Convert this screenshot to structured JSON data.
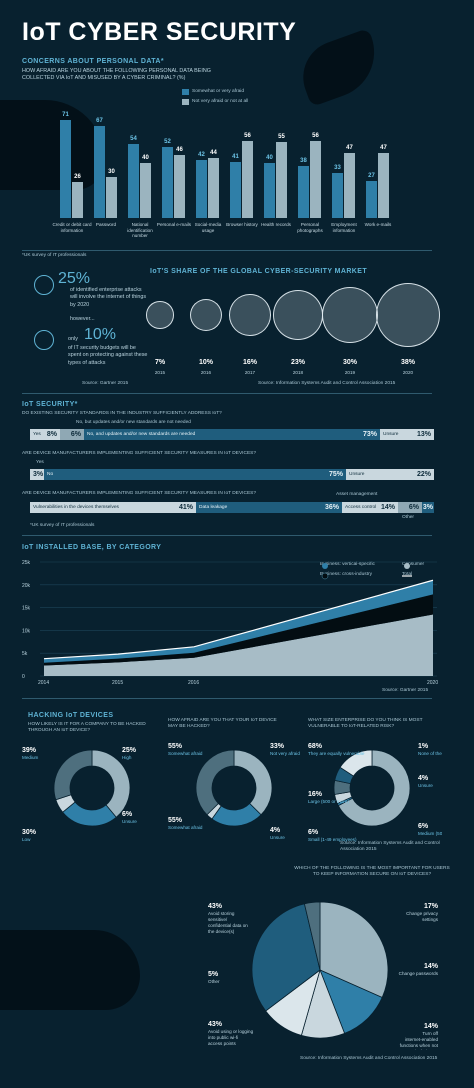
{
  "title": "IoT CYBER SECURITY",
  "concerns": {
    "heading": "CONCERNS ABOUT PERSONAL DATA*",
    "question": "HOW AFRAID ARE YOU ABOUT THE FOLLOWING PERSONAL DATA BEING COLLECTED VIA IoT AND MISUSED BY A CYBER CRIMINAL? (%)",
    "legend_a": "Somewhat or very afraid",
    "legend_b": "Not very afraid or not at all",
    "footnote": "*UK survey of IT professionals"
  },
  "threat": {
    "pct1": "25%",
    "text1": "of identified enterprise attacks will involve the internet of things by 2020",
    "however": "however...",
    "only": "only",
    "pct2": "10%",
    "text2": "of IT security budgets will be spent on protecting against these types of attacks",
    "source": "Source: Gartner 2015"
  },
  "share": {
    "heading": "IoT'S SHARE OF THE GLOBAL CYBER-SECURITY MARKET",
    "source": "Source: Information Systems Audit and Control Association 2015"
  },
  "security": {
    "heading": "IoT SECURITY*",
    "q1": "DO EXISTING SECURITY STANDARDS IN THE INDUSTRY SUFFICIENTLY ADDRESS IoT?",
    "q1_note": "No, but updates and/or new standards are not needed",
    "q1_yes": "Yes",
    "q1_yes_v": "8%",
    "q1_note_v": "6%",
    "q1_no": "No, and updates and/or new standards are needed",
    "q1_no_v": "73%",
    "q1_unsure": "Unsure",
    "q1_unsure_v": "13%",
    "q2": "ARE DEVICE MANUFACTURERS IMPLEMENTING SUFFICIENT SECURITY MEASURES IN IoT DEVICES?",
    "q2_yes_label": "Yes",
    "q2_yes_v": "3%",
    "q2_no": "No",
    "q2_no_v": "75%",
    "q2_unsure": "Unsure",
    "q2_unsure_v": "22%",
    "q3": "ARE DEVICE MANUFACTURERS IMPLEMENTING SUFFICIENT SECURITY MEASURES IN IoT DEVICES?",
    "q3_asset": "Asset management",
    "q3_vuln": "Vulnerabilities in the devices themselves",
    "q3_vuln_v": "41%",
    "q3_data": "Data leakage",
    "q3_data_v": "36%",
    "q3_access": "Access control",
    "q3_access_v": "14%",
    "q3_asset_v": "6%",
    "q3_other_v": "3%",
    "q3_other": "Other",
    "footnote": "*UK survey of IT professionals"
  },
  "installed": {
    "heading": "IoT INSTALLED BASE, BY CATEGORY",
    "legend": [
      "Business: vertical-specific",
      "Consumer",
      "Business: cross-industry",
      "Total"
    ],
    "source": "Source: Gartner 2015"
  },
  "hacking": {
    "heading": "HACKING IoT DEVICES",
    "q1": "HOW LIKELY IS IT FOR A COMPANY TO BE HACKED THROUGH AN IoT DEVICE?",
    "q2": "HOW AFRAID ARE YOU THAT YOUR IoT DEVICE MAY BE HACKED?",
    "q3": "WHAT SIZE ENTERPRISE DO YOU THINK IS MOST VULNERABLE TO IoT-RELATED RISK?",
    "d1": [
      {
        "v": "39%",
        "l": "Medium"
      },
      {
        "v": "25%",
        "l": "High"
      },
      {
        "v": "6%",
        "l": "Unsure"
      },
      {
        "v": "30%",
        "l": "Low"
      }
    ],
    "d2": [
      {
        "v": "55%",
        "l": "Somewhat afraid"
      },
      {
        "v": "33%",
        "l": "Not very afraid"
      },
      {
        "v": "4%",
        "l": "Unsure"
      },
      {
        "v": "55%",
        "l": "Somewhat afraid"
      }
    ],
    "d3": [
      {
        "v": "68%",
        "l": "They are equally vulnerable"
      },
      {
        "v": "1%",
        "l": "None of them are vulnerable"
      },
      {
        "v": "4%",
        "l": "Unsure"
      },
      {
        "v": "16%",
        "l": "Large (500 or more)"
      },
      {
        "v": "6%",
        "l": "Small (1-49 employees)"
      },
      {
        "v": "6%",
        "l": "Medium (50-499)"
      }
    ],
    "source": "Source: Information Systems Audit and Control Association 2015"
  },
  "important": {
    "question": "WHICH OF THE FOLLOWING IS THE MOST IMPORTANT FOR USERS TO KEEP INFORMATION SECURE ON IoT DEVICES?",
    "items": [
      {
        "v": "43%",
        "l": "Avoid storing sensitive/ confidential data on the device(s)"
      },
      {
        "v": "17%",
        "l": "Change privacy settings"
      },
      {
        "v": "5%",
        "l": "Other"
      },
      {
        "v": "14%",
        "l": "Change passwords"
      },
      {
        "v": "43%",
        "l": "Avoid using or logging into public wi-fi access points"
      },
      {
        "v": "14%",
        "l": "Turn off internet-enabled functions when not actively in use"
      }
    ],
    "source": "Source: Information Systems Audit and Control Association 2015"
  },
  "colors": {
    "accent": "#2f7fa8",
    "light": "#9bb4bf",
    "bg": "#08212f",
    "cyan": "#5fb3d4"
  },
  "chart_data": [
    {
      "type": "bar",
      "title": "CONCERNS ABOUT PERSONAL DATA*",
      "categories": [
        "Credit or debit card information",
        "Password",
        "National identification number",
        "Personal e-mails",
        "Social-media usage",
        "Browser history",
        "Health records",
        "Personal photographs",
        "Employment information",
        "Work e-mails"
      ],
      "series": [
        {
          "name": "Somewhat or very afraid",
          "values": [
            71,
            67,
            54,
            52,
            42,
            41,
            40,
            38,
            33,
            27
          ]
        },
        {
          "name": "Not very afraid or not at all",
          "values": [
            26,
            30,
            40,
            46,
            44,
            56,
            55,
            56,
            47,
            47
          ]
        }
      ],
      "ylim": [
        0,
        80
      ]
    },
    {
      "type": "scatter",
      "title": "IoT'S SHARE OF THE GLOBAL CYBER-SECURITY MARKET",
      "x": [
        "2015",
        "2016",
        "2017",
        "2018",
        "2019",
        "2020"
      ],
      "values": [
        7,
        10,
        16,
        23,
        30,
        38
      ],
      "value_labels": [
        "7%",
        "10%",
        "16%",
        "23%",
        "30%",
        "38%"
      ]
    },
    {
      "type": "area",
      "title": "IoT INSTALLED BASE, BY CATEGORY",
      "x": [
        2014,
        2015,
        2016,
        2020
      ],
      "x_ticks": [
        "2014",
        "2015",
        "2016",
        "2020"
      ],
      "y_ticks": [
        "25k",
        "20k",
        "15k",
        "10k",
        "5k",
        "0"
      ],
      "ylim": [
        0,
        25000
      ],
      "series": [
        {
          "name": "Consumer",
          "values": [
            2300,
            3000,
            4000,
            13500
          ]
        },
        {
          "name": "Business: cross-industry",
          "values": [
            600,
            800,
            1100,
            4400
          ]
        },
        {
          "name": "Business: vertical-specific",
          "values": [
            900,
            1000,
            1300,
            3100
          ]
        },
        {
          "name": "Total",
          "values": [
            3800,
            4800,
            6400,
            21000
          ]
        }
      ]
    },
    {
      "type": "pie",
      "title": "HOW LIKELY IS IT FOR A COMPANY TO BE HACKED THROUGH AN IoT DEVICE?",
      "categories": [
        "Medium",
        "High",
        "Unsure",
        "Low"
      ],
      "values": [
        39,
        25,
        6,
        30
      ]
    },
    {
      "type": "pie",
      "title": "HOW AFRAID ARE YOU THAT YOUR IoT DEVICE MAY BE HACKED?",
      "categories": [
        "Somewhat afraid",
        "Not very afraid",
        "Unsure",
        "Somewhat afraid"
      ],
      "values": [
        55,
        33,
        4,
        55
      ]
    },
    {
      "type": "pie",
      "title": "WHAT SIZE ENTERPRISE DO YOU THINK IS MOST VULNERABLE TO IoT-RELATED RISK?",
      "categories": [
        "They are equally vulnerable",
        "None of them are vulnerable",
        "Unsure",
        "Medium (50-499)",
        "Small (1-49 employees)",
        "Large (500 or more)"
      ],
      "values": [
        68,
        1,
        4,
        6,
        6,
        16
      ]
    },
    {
      "type": "pie",
      "title": "WHICH OF THE FOLLOWING IS THE MOST IMPORTANT FOR USERS TO KEEP INFORMATION SECURE ON IoT DEVICES?",
      "categories": [
        "Avoid storing sensitive/ confidential data on the device(s)",
        "Change privacy settings",
        "Change passwords",
        "Turn off internet-enabled functions when not actively in use",
        "Avoid using or logging into public wi-fi access points",
        "Other"
      ],
      "values": [
        43,
        17,
        14,
        14,
        43,
        5
      ]
    }
  ]
}
